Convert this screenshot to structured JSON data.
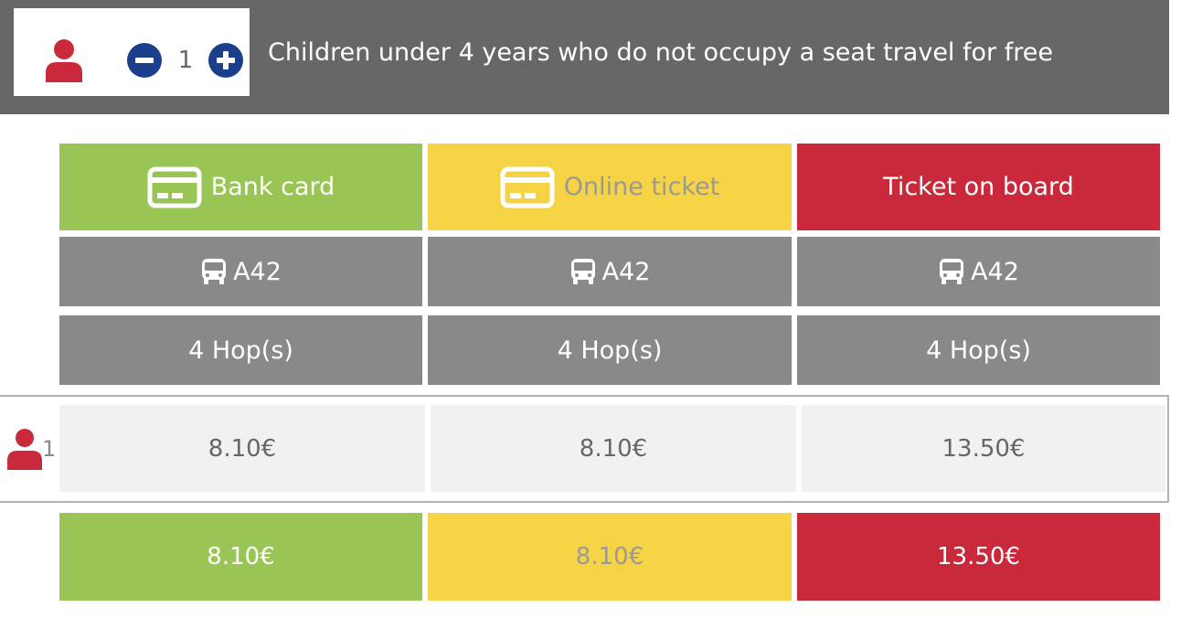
{
  "passenger_counter": {
    "icon": "person-icon",
    "count": "1",
    "minus_icon": "minus-circle-icon",
    "plus_icon": "plus-circle-icon"
  },
  "note": "Children under 4 years who do not occupy a seat travel for free",
  "colors": {
    "topbar": "#676767",
    "bank_card": "#99c554",
    "online_ticket": "#f6d344",
    "ticket_on_board": "#c9293a",
    "route_cell": "#898989",
    "price_cell": "#f1f1f1",
    "accent_blue": "#1c3f8c",
    "person_red": "#c9293a"
  },
  "columns": [
    {
      "label": "Bank card",
      "icon": "credit-card-icon",
      "route_icon": "bus-icon",
      "route": "A42",
      "hops": "4 Hop(s)",
      "price": "8.10€",
      "total": "8.10€"
    },
    {
      "label": "Online ticket",
      "icon": "credit-card-icon",
      "route_icon": "bus-icon",
      "route": "A42",
      "hops": "4 Hop(s)",
      "price": "8.10€",
      "total": "8.10€"
    },
    {
      "label": "Ticket on board",
      "icon": "",
      "route_icon": "bus-icon",
      "route": "A42",
      "hops": "4 Hop(s)",
      "price": "13.50€",
      "total": "13.50€"
    }
  ],
  "passenger_row": {
    "icon": "person-icon",
    "count": "1"
  }
}
